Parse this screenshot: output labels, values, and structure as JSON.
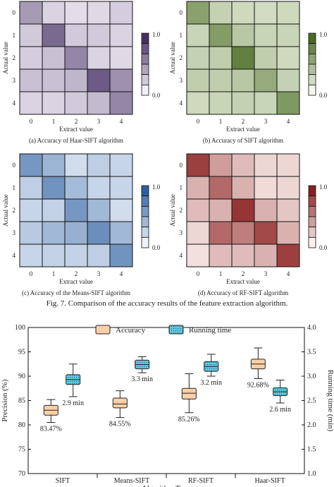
{
  "figure_caption": "Fig. 7.    Comparison of the accuracy results of the feature extraction algorithm.",
  "chart_data": [
    {
      "type": "heatmap",
      "caption": "(a)  Accuracy of Haar-SIFT algorithm",
      "xlabel": "Extract value",
      "ylabel": "Actual value",
      "x_ticks": [
        "0",
        "1",
        "2",
        "3",
        "4"
      ],
      "y_ticks": [
        "0",
        "1",
        "2",
        "3",
        "4"
      ],
      "colorbar_ticks": [
        "1.0",
        "0.0"
      ],
      "colorbar_range": [
        0,
        1
      ],
      "colormap": [
        "#f4f0f8",
        "#473064"
      ],
      "values": [
        [
          0.45,
          0.15,
          0.1,
          0.12,
          0.18
        ],
        [
          0.2,
          0.7,
          0.2,
          0.2,
          0.15
        ],
        [
          0.18,
          0.25,
          0.55,
          0.15,
          0.12
        ],
        [
          0.25,
          0.25,
          0.3,
          0.78,
          0.5
        ],
        [
          0.15,
          0.15,
          0.2,
          0.28,
          0.55
        ]
      ]
    },
    {
      "type": "heatmap",
      "caption": "(b)  Accuracy of SIFT algorithm",
      "xlabel": "Extract value",
      "ylabel": "Actual value",
      "x_ticks": [
        "0",
        "1",
        "2",
        "3",
        "4"
      ],
      "y_ticks": [
        "0",
        "1",
        "2",
        "3",
        "4"
      ],
      "colorbar_ticks": [
        "1.0",
        "0.0"
      ],
      "colorbar_range": [
        0,
        1
      ],
      "colormap": [
        "#f3f8ea",
        "#4a6b22"
      ],
      "values": [
        [
          0.62,
          0.28,
          0.22,
          0.2,
          0.22
        ],
        [
          0.25,
          0.65,
          0.35,
          0.25,
          0.25
        ],
        [
          0.28,
          0.3,
          0.85,
          0.3,
          0.22
        ],
        [
          0.3,
          0.3,
          0.35,
          0.55,
          0.28
        ],
        [
          0.22,
          0.25,
          0.28,
          0.25,
          0.68
        ]
      ]
    },
    {
      "type": "heatmap",
      "caption": "(c) Accuracy of the Means-SIFT algorithm",
      "xlabel": "Extract value",
      "ylabel": "Actual value",
      "x_ticks": [
        "0",
        "1",
        "2",
        "3",
        "4"
      ],
      "y_ticks": [
        "0",
        "1",
        "2",
        "3",
        "4"
      ],
      "colorbar_ticks": [
        "1.0",
        "0.0"
      ],
      "colorbar_range": [
        0,
        1
      ],
      "colormap": [
        "#eef3fb",
        "#2d5f9f"
      ],
      "values": [
        [
          0.62,
          0.42,
          0.15,
          0.25,
          0.2
        ],
        [
          0.25,
          0.65,
          0.38,
          0.2,
          0.2
        ],
        [
          0.2,
          0.22,
          0.62,
          0.4,
          0.15
        ],
        [
          0.28,
          0.4,
          0.45,
          0.68,
          0.4
        ],
        [
          0.2,
          0.22,
          0.22,
          0.25,
          0.65
        ]
      ]
    },
    {
      "type": "heatmap",
      "caption": "(d) Accuracy of RF-SIFT algorithm",
      "xlabel": "Extract value",
      "ylabel": "Actual value",
      "x_ticks": [
        "0",
        "1",
        "2",
        "3",
        "4"
      ],
      "y_ticks": [
        "0",
        "1",
        "2",
        "3",
        "4"
      ],
      "colorbar_ticks": [
        "1.0",
        "0.0"
      ],
      "colorbar_range": [
        0,
        1
      ],
      "colormap": [
        "#fbf0ee",
        "#8a2020"
      ],
      "values": [
        [
          0.85,
          0.4,
          0.25,
          0.12,
          0.12
        ],
        [
          0.3,
          0.65,
          0.3,
          0.1,
          0.12
        ],
        [
          0.25,
          0.3,
          0.9,
          0.3,
          0.2
        ],
        [
          0.12,
          0.65,
          0.55,
          0.8,
          0.3
        ],
        [
          0.08,
          0.25,
          0.25,
          0.3,
          0.85
        ]
      ]
    },
    {
      "type": "box",
      "categories": [
        "SIFT",
        "Means-SIFT",
        "RF-SIFT",
        "Haar-SIFT"
      ],
      "xlabel": "Algorithm Type",
      "ylabel_left": "Precision (%)",
      "ylabel_right": "Running time (min)",
      "ylim_left": [
        70,
        100
      ],
      "ylim_right": [
        1.0,
        4.0
      ],
      "yticks_left": [
        "70",
        "75",
        "80",
        "85",
        "90",
        "95",
        "100"
      ],
      "yticks_right": [
        "1.0",
        "1.5",
        "2.0",
        "2.5",
        "3.0",
        "3.5",
        "4.0"
      ],
      "legend_position": "top",
      "series": [
        {
          "name": "Accuracy",
          "axis": "left",
          "color": "#fbd0a8",
          "stroke": "#333333",
          "boxes": [
            {
              "min": 80.5,
              "q1": 82.0,
              "median": 83.0,
              "q3": 84.0,
              "max": 85.2
            },
            {
              "min": 81.5,
              "q1": 83.5,
              "median": 84.3,
              "q3": 85.5,
              "max": 87.0
            },
            {
              "min": 82.5,
              "q1": 85.3,
              "median": 86.5,
              "q3": 87.5,
              "max": 90.5
            },
            {
              "min": 89.5,
              "q1": 91.5,
              "median": 92.5,
              "q3": 93.5,
              "max": 95.8
            }
          ],
          "labels": [
            "83.47%",
            "84.55%",
            "85.26%",
            "92.68%"
          ]
        },
        {
          "name": "Running time",
          "axis": "right",
          "color": "#66c8e0",
          "stroke": "#333333",
          "boxes": [
            {
              "min": 2.58,
              "q1": 2.83,
              "median": 2.93,
              "q3": 3.03,
              "max": 3.25
            },
            {
              "min": 3.07,
              "q1": 3.15,
              "median": 3.24,
              "q3": 3.33,
              "max": 3.4
            },
            {
              "min": 3.0,
              "q1": 3.1,
              "median": 3.2,
              "q3": 3.3,
              "max": 3.45
            },
            {
              "min": 2.45,
              "q1": 2.6,
              "median": 2.68,
              "q3": 2.76,
              "max": 2.92
            }
          ],
          "labels": [
            "2.9 min",
            "3.3 min",
            "3.2 min",
            "2.6 min"
          ]
        }
      ]
    }
  ]
}
